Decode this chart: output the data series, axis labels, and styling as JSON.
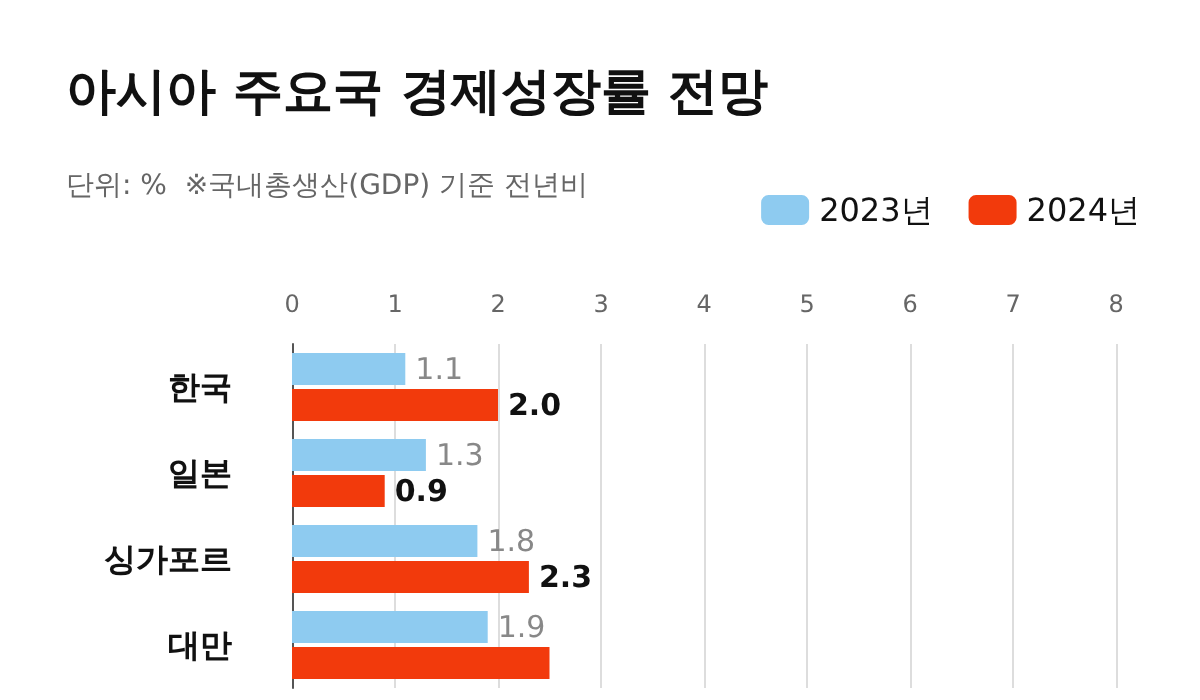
{
  "chart_data": {
    "type": "bar",
    "orientation": "horizontal",
    "title": "아시아 주요국 경제성장률 전망",
    "subtitle": "단위: %  ※국내총생산(GDP) 기준 전년비",
    "categories": [
      "한국",
      "일본",
      "싱가포르",
      "대만"
    ],
    "series": [
      {
        "name": "2023년",
        "color": "#8ecbf0",
        "values": [
          1.1,
          1.3,
          1.8,
          1.9
        ],
        "value_labels": [
          "1.1",
          "1.3",
          "1.8",
          "1.9"
        ]
      },
      {
        "name": "2024년",
        "color": "#f23a0c",
        "values": [
          2.0,
          0.9,
          2.3,
          2.5
        ],
        "value_labels": [
          "2.0",
          "0.9",
          "2.3",
          null
        ]
      }
    ],
    "xlim": [
      0,
      8
    ],
    "xticks": [
      0,
      1,
      2,
      3,
      4,
      5,
      6,
      7,
      8
    ],
    "grid": "x",
    "legend": "top right"
  }
}
